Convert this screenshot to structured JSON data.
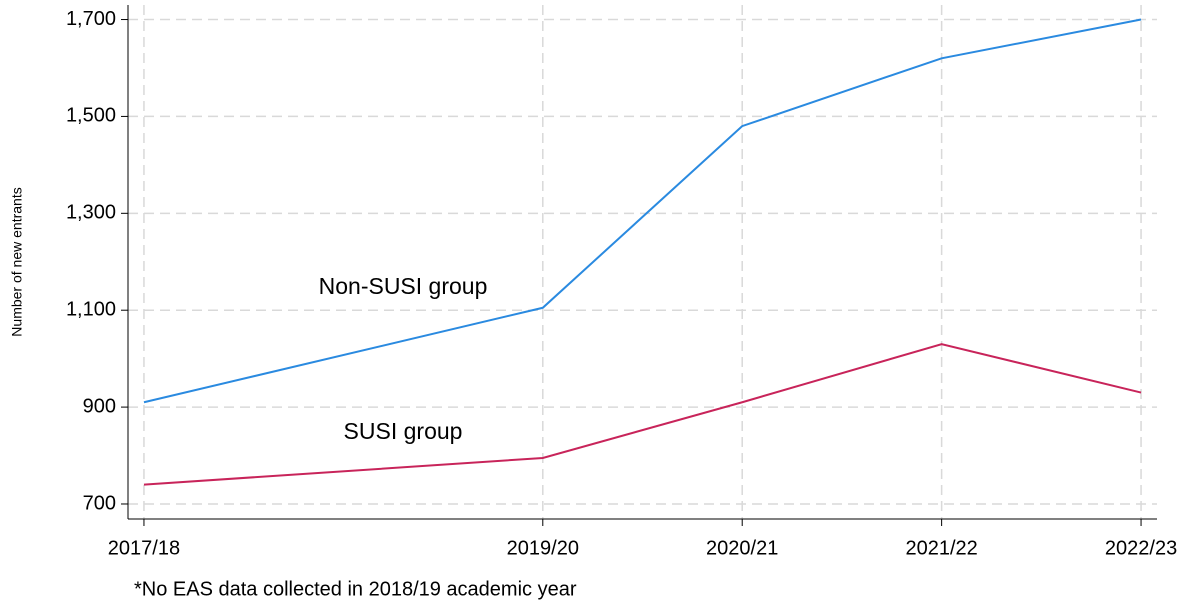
{
  "chart_data": {
    "type": "line",
    "y_label": "Number of new entrants",
    "note": "*No EAS data collected in 2018/19 academic year",
    "x": [
      2017,
      2019,
      2020,
      2021,
      2022
    ],
    "xlim": [
      2016.92,
      2022.08
    ],
    "xticks": [
      {
        "value": 2017,
        "label": "2017/18"
      },
      {
        "value": 2019,
        "label": "2019/20"
      },
      {
        "value": 2020,
        "label": "2020/21"
      },
      {
        "value": 2021,
        "label": "2021/22"
      },
      {
        "value": 2022,
        "label": "2022/23"
      }
    ],
    "ylim": [
      669,
      1730
    ],
    "yticks": [
      700,
      900,
      {
        "value": 1100,
        "label": "1,100"
      },
      {
        "value": 1300,
        "label": "1,300"
      },
      {
        "value": 1500,
        "label": "1,500"
      },
      {
        "value": 1700,
        "label": "1,700"
      }
    ],
    "grid": true,
    "series": [
      {
        "name": "Non-SUSI group",
        "color": "#2a8ae0",
        "values": [
          910,
          1105,
          1480,
          1620,
          1700
        ]
      },
      {
        "name": "SUSI group",
        "color": "#c8245a",
        "values": [
          740,
          795,
          910,
          1030,
          930
        ]
      }
    ]
  }
}
